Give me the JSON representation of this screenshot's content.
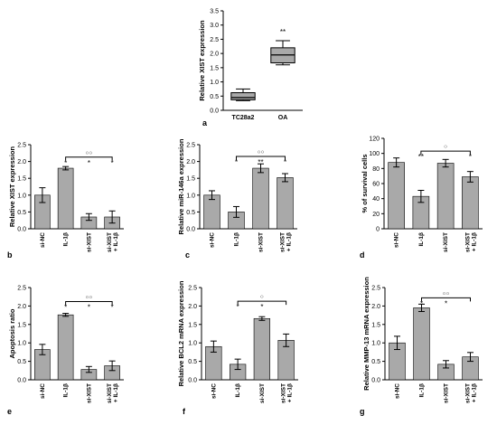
{
  "chart_data": [
    {
      "id": "a",
      "type": "box",
      "panel_label": "a",
      "ylabel": "Relative XIST expression",
      "ylim": [
        0,
        3.5
      ],
      "yticks": [
        "0.0",
        "0.5",
        "1.0",
        "1.5",
        "2.0",
        "2.5",
        "3.0",
        "3.5"
      ],
      "categories": [
        "TC28a2",
        "OA"
      ],
      "boxes": [
        {
          "min": 0.34,
          "q1": 0.37,
          "median": 0.45,
          "q3": 0.62,
          "max": 0.75,
          "sig": ""
        },
        {
          "min": 1.6,
          "q1": 1.67,
          "median": 1.95,
          "q3": 2.2,
          "max": 2.45,
          "sig": "**"
        }
      ],
      "bracket": null
    },
    {
      "id": "b",
      "type": "bar",
      "panel_label": "b",
      "ylabel": "Relative XIST expression",
      "ylim": [
        0,
        2.5
      ],
      "yticks": [
        "0.0",
        "0.5",
        "1.0",
        "1.5",
        "2.0",
        "2.5"
      ],
      "categories": [
        "si-NC",
        "IL-1β",
        "si-XIST",
        "si-XIST\n+ IL-1β"
      ],
      "values": [
        1.0,
        1.8,
        0.35,
        0.35
      ],
      "errors": [
        0.22,
        0.05,
        0.1,
        0.18
      ],
      "sig": [
        "",
        "*",
        "*",
        "*"
      ],
      "bracket": {
        "from": 1,
        "to": 3,
        "y": 2.13,
        "label": "○○"
      }
    },
    {
      "id": "c",
      "type": "bar",
      "panel_label": "c",
      "ylabel": "Relative miR-146a expression",
      "ylim": [
        0,
        2.5
      ],
      "yticks": [
        "0.0",
        "0.5",
        "1.0",
        "1.5",
        "2.0",
        "2.5"
      ],
      "categories": [
        "si-NC",
        "IL-1β",
        "si-XIST",
        "si-XIST\n+ IL-1β"
      ],
      "values": [
        1.0,
        0.5,
        1.8,
        1.52
      ],
      "errors": [
        0.13,
        0.16,
        0.13,
        0.12
      ],
      "sig": [
        "",
        "*",
        "**",
        "*"
      ],
      "bracket": {
        "from": 1,
        "to": 3,
        "y": 2.15,
        "label": "○○"
      }
    },
    {
      "id": "d",
      "type": "bar",
      "panel_label": "d",
      "ylabel": "% of survival cells",
      "ylim": [
        0,
        120
      ],
      "yticks": [
        "0",
        "20",
        "40",
        "60",
        "80",
        "100",
        "120"
      ],
      "categories": [
        "si-NC",
        "IL-1β",
        "si-XIST",
        "si-XIST\n+ IL-1β"
      ],
      "values": [
        88,
        43,
        87,
        69
      ],
      "errors": [
        6,
        8,
        5,
        7
      ],
      "sig": [
        "",
        "**",
        "",
        "*"
      ],
      "bracket": {
        "from": 1,
        "to": 3,
        "y": 103,
        "label": "○"
      }
    },
    {
      "id": "e",
      "type": "bar",
      "panel_label": "e",
      "ylabel": "Apoptosis ratio",
      "ylim": [
        0,
        2.5
      ],
      "yticks": [
        "0.0",
        "0.5",
        "1.0",
        "1.5",
        "2.0",
        "2.5"
      ],
      "categories": [
        "si-NC",
        "IL-1β",
        "si-XIST",
        "si-XIST\n+ IL-1β"
      ],
      "values": [
        0.82,
        1.76,
        0.28,
        0.38
      ],
      "errors": [
        0.14,
        0.04,
        0.08,
        0.13
      ],
      "sig": [
        "",
        "*",
        "*",
        "*"
      ],
      "bracket": {
        "from": 1,
        "to": 3,
        "y": 2.12,
        "label": "○○"
      }
    },
    {
      "id": "f",
      "type": "bar",
      "panel_label": "f",
      "ylabel": "Relative BCL2 mRNA expression",
      "ylim": [
        0,
        2.5
      ],
      "yticks": [
        "0.0",
        "0.5",
        "1.0",
        "1.5",
        "2.0",
        "2.5"
      ],
      "categories": [
        "si-NC",
        "IL-1β",
        "si-XIST",
        "si-XIST\n+ IL-1β"
      ],
      "values": [
        0.9,
        0.42,
        1.66,
        1.07
      ],
      "errors": [
        0.15,
        0.14,
        0.05,
        0.17
      ],
      "sig": [
        "",
        "*",
        "*",
        ""
      ],
      "bracket": {
        "from": 1,
        "to": 3,
        "y": 2.13,
        "label": "○"
      }
    },
    {
      "id": "g",
      "type": "bar",
      "panel_label": "g",
      "ylabel": "Relative MMP-13 mRNA expression",
      "ylim": [
        0,
        2.5
      ],
      "yticks": [
        "0.0",
        "0.5",
        "1.0",
        "1.5",
        "2.0",
        "2.5"
      ],
      "categories": [
        "si-NC",
        "IL-1β",
        "si-XIST",
        "si-XIST\n+ IL-1β"
      ],
      "values": [
        1.0,
        1.95,
        0.42,
        0.62
      ],
      "errors": [
        0.18,
        0.1,
        0.1,
        0.12
      ],
      "sig": [
        "",
        "*",
        "*",
        ""
      ],
      "bracket": {
        "from": 1,
        "to": 3,
        "y": 2.22,
        "label": "○○"
      }
    }
  ]
}
